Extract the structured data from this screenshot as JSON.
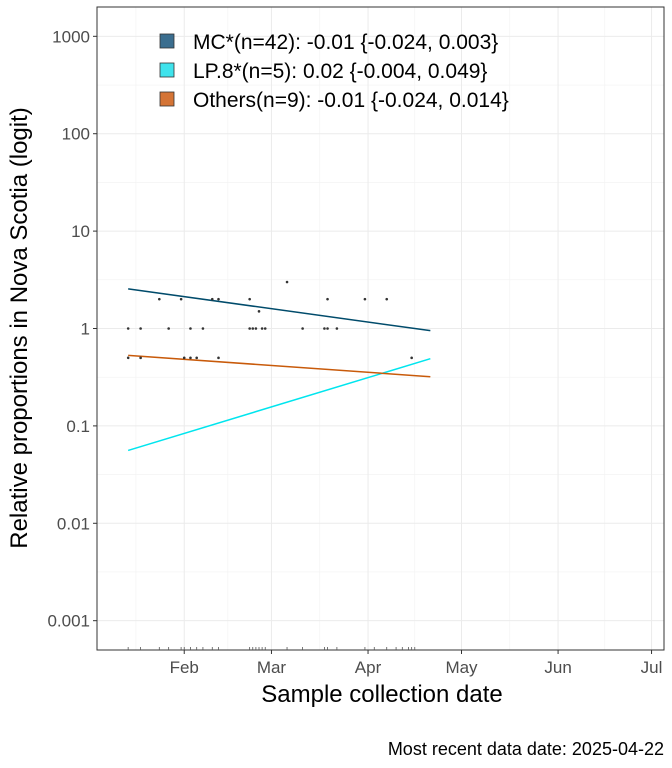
{
  "chart_data": {
    "type": "scatter",
    "title": "",
    "xlabel": "Sample collection date",
    "ylabel": "Relative proportions in Nova Scotia (logit)",
    "caption": "Most recent data date: 2025-04-22",
    "y_scale": "log",
    "ylim": [
      0.0005,
      2000
    ],
    "xlim": [
      "2025-01-04",
      "2025-07-05"
    ],
    "y_ticks": [
      {
        "value": 0.001,
        "label": "0.001"
      },
      {
        "value": 0.01,
        "label": "0.01"
      },
      {
        "value": 0.1,
        "label": "0.1"
      },
      {
        "value": 1,
        "label": "1"
      },
      {
        "value": 10,
        "label": "10"
      },
      {
        "value": 100,
        "label": "100"
      },
      {
        "value": 1000,
        "label": "1000"
      }
    ],
    "x_ticks": [
      {
        "date": "2025-02-01",
        "label": "Feb"
      },
      {
        "date": "2025-03-01",
        "label": "Mar"
      },
      {
        "date": "2025-04-01",
        "label": "Apr"
      },
      {
        "date": "2025-05-01",
        "label": "May"
      },
      {
        "date": "2025-06-01",
        "label": "Jun"
      },
      {
        "date": "2025-07-01",
        "label": "Jul"
      }
    ],
    "grid": true,
    "legend_position": "top-left",
    "series": [
      {
        "name": "MC*(n=42): -0.01 {-0.024, 0.003}",
        "color": "#004b6b",
        "legend_fill": "#3b6e8f",
        "trend": [
          {
            "x": "2025-01-14",
            "y": 2.55
          },
          {
            "x": "2025-04-21",
            "y": 0.95
          }
        ]
      },
      {
        "name": "LP.8*(n=5): 0.02 {-0.004, 0.049}",
        "color": "#00e5ee",
        "legend_fill": "#3fe3ec",
        "trend": [
          {
            "x": "2025-01-14",
            "y": 0.056
          },
          {
            "x": "2025-04-21",
            "y": 0.49
          }
        ]
      },
      {
        "name": "Others(n=9): -0.01 {-0.024, 0.014}",
        "color": "#c85a0a",
        "legend_fill": "#d47436",
        "trend": [
          {
            "x": "2025-01-14",
            "y": 0.53
          },
          {
            "x": "2025-04-21",
            "y": 0.32
          }
        ]
      }
    ],
    "points": [
      {
        "x": "2025-01-14",
        "y": 1
      },
      {
        "x": "2025-01-14",
        "y": 0.5
      },
      {
        "x": "2025-01-18",
        "y": 1
      },
      {
        "x": "2025-01-18",
        "y": 0.5
      },
      {
        "x": "2025-01-24",
        "y": 2
      },
      {
        "x": "2025-01-27",
        "y": 1
      },
      {
        "x": "2025-01-31",
        "y": 2
      },
      {
        "x": "2025-02-01",
        "y": 0.5
      },
      {
        "x": "2025-02-03",
        "y": 1
      },
      {
        "x": "2025-02-03",
        "y": 0.5
      },
      {
        "x": "2025-02-05",
        "y": 0.5
      },
      {
        "x": "2025-02-07",
        "y": 1
      },
      {
        "x": "2025-02-10",
        "y": 2
      },
      {
        "x": "2025-02-12",
        "y": 2
      },
      {
        "x": "2025-02-12",
        "y": 0.5
      },
      {
        "x": "2025-02-22",
        "y": 2
      },
      {
        "x": "2025-02-22",
        "y": 1
      },
      {
        "x": "2025-02-23",
        "y": 1
      },
      {
        "x": "2025-02-24",
        "y": 1
      },
      {
        "x": "2025-02-25",
        "y": 1.5
      },
      {
        "x": "2025-02-26",
        "y": 1
      },
      {
        "x": "2025-02-27",
        "y": 1
      },
      {
        "x": "2025-03-06",
        "y": 3
      },
      {
        "x": "2025-03-11",
        "y": 1
      },
      {
        "x": "2025-03-18",
        "y": 1
      },
      {
        "x": "2025-03-19",
        "y": 2
      },
      {
        "x": "2025-03-19",
        "y": 1
      },
      {
        "x": "2025-03-22",
        "y": 1
      },
      {
        "x": "2025-03-31",
        "y": 2
      },
      {
        "x": "2025-04-07",
        "y": 2
      },
      {
        "x": "2025-04-15",
        "y": 0.5
      }
    ],
    "rug_dates": [
      "2025-01-14",
      "2025-01-18",
      "2025-01-24",
      "2025-01-27",
      "2025-01-31",
      "2025-02-01",
      "2025-02-03",
      "2025-02-05",
      "2025-02-07",
      "2025-02-10",
      "2025-02-12",
      "2025-02-22",
      "2025-02-23",
      "2025-02-24",
      "2025-02-25",
      "2025-02-26",
      "2025-02-27",
      "2025-03-06",
      "2025-03-11",
      "2025-03-18",
      "2025-03-19",
      "2025-03-22",
      "2025-03-31",
      "2025-04-03",
      "2025-04-07",
      "2025-04-10",
      "2025-04-12",
      "2025-04-14",
      "2025-04-15",
      "2025-04-16"
    ]
  }
}
